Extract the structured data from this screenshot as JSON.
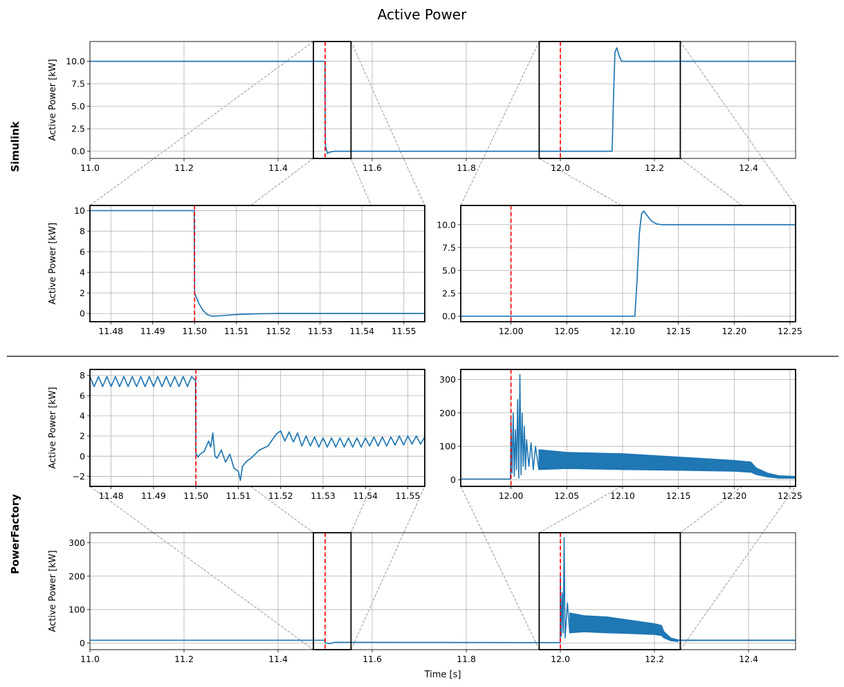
{
  "title": "Active Power",
  "row_labels": [
    "Simulink",
    "PowerFactory"
  ],
  "colors": {
    "series": "#1f77b4",
    "event_line": "#ff0000",
    "grid": "#b0b0b0",
    "zoom_box": "#000000",
    "connector": "#808080"
  },
  "chart_data": [
    {
      "id": "simulink-overview",
      "type": "line",
      "row": "Simulink",
      "title": "",
      "xlabel": "",
      "ylabel": "Active Power [kW]",
      "xlim": [
        11.0,
        12.5
      ],
      "ylim": [
        -0.8,
        12.2
      ],
      "xticks": [
        11.0,
        11.2,
        11.4,
        11.6,
        11.8,
        12.0,
        12.2,
        12.4
      ],
      "xtick_labels": [
        "11.0",
        "11.2",
        "11.4",
        "11.6",
        "11.8",
        "12.0",
        "12.2",
        "12.4"
      ],
      "yticks": [
        0,
        2.5,
        5,
        7.5,
        10
      ],
      "ytick_labels": [
        "0.0",
        "2.5",
        "5.0",
        "7.5",
        "10.0"
      ],
      "grid": true,
      "event_lines_x": [
        11.5,
        12.0
      ],
      "zoom_regions": [
        [
          11.475,
          11.555
        ],
        [
          11.955,
          12.255
        ]
      ],
      "series": [
        {
          "x": [
            11.0,
            11.4995,
            11.5,
            11.501,
            11.505,
            11.51,
            11.52,
            12.11,
            12.113,
            12.116,
            12.12,
            12.125,
            12.13,
            12.2,
            12.5
          ],
          "y": [
            10,
            10,
            1.5,
            0.5,
            -0.25,
            -0.1,
            0,
            0,
            6,
            11,
            11.5,
            10.6,
            10,
            10,
            10
          ]
        }
      ]
    },
    {
      "id": "simulink-zoom-fault",
      "type": "line",
      "row": "Simulink",
      "title": "",
      "xlabel": "",
      "ylabel": "Active Power [kW]",
      "xlim": [
        11.475,
        11.555
      ],
      "ylim": [
        -0.8,
        10.5
      ],
      "xticks": [
        11.48,
        11.49,
        11.5,
        11.51,
        11.52,
        11.53,
        11.54,
        11.55
      ],
      "xtick_labels": [
        "11.48",
        "11.49",
        "11.50",
        "11.51",
        "11.52",
        "11.53",
        "11.54",
        "11.55"
      ],
      "yticks": [
        0,
        2,
        4,
        6,
        8,
        10
      ],
      "ytick_labels": [
        "0",
        "2",
        "4",
        "6",
        "8",
        "10"
      ],
      "grid": true,
      "event_lines_x": [
        11.5
      ],
      "series": [
        {
          "x": [
            11.475,
            11.4999,
            11.5,
            11.501,
            11.502,
            11.503,
            11.504,
            11.505,
            11.507,
            11.51,
            11.515,
            11.52,
            11.555
          ],
          "y": [
            10,
            10,
            2.0,
            1.0,
            0.3,
            -0.1,
            -0.25,
            -0.25,
            -0.2,
            -0.1,
            -0.03,
            0,
            0
          ]
        }
      ]
    },
    {
      "id": "simulink-zoom-recovery",
      "type": "line",
      "row": "Simulink",
      "title": "",
      "xlabel": "",
      "ylabel": "",
      "xlim": [
        11.955,
        12.255
      ],
      "ylim": [
        -0.6,
        12.1
      ],
      "xticks": [
        12.0,
        12.05,
        12.1,
        12.15,
        12.2,
        12.25
      ],
      "xtick_labels": [
        "12.00",
        "12.05",
        "12.10",
        "12.15",
        "12.20",
        "12.25"
      ],
      "yticks": [
        0,
        2.5,
        5,
        7.5,
        10
      ],
      "ytick_labels": [
        "0.0",
        "2.5",
        "5.0",
        "7.5",
        "10.0"
      ],
      "grid": true,
      "event_lines_x": [
        12.0
      ],
      "series": [
        {
          "x": [
            11.955,
            12.111,
            12.113,
            12.115,
            12.117,
            12.119,
            12.122,
            12.126,
            12.13,
            12.135,
            12.255
          ],
          "y": [
            0,
            0,
            4,
            9,
            11.2,
            11.5,
            11.0,
            10.4,
            10.1,
            10,
            10
          ]
        }
      ]
    },
    {
      "id": "powerfactory-zoom-fault",
      "type": "line",
      "row": "PowerFactory",
      "title": "",
      "xlabel": "",
      "ylabel": "Active Power [kW]",
      "xlim": [
        11.475,
        11.554
      ],
      "ylim": [
        -3.0,
        8.6
      ],
      "xticks": [
        11.48,
        11.49,
        11.5,
        11.51,
        11.52,
        11.53,
        11.54,
        11.55
      ],
      "xtick_labels": [
        "11.48",
        "11.49",
        "11.50",
        "11.51",
        "11.52",
        "11.53",
        "11.54",
        "11.55"
      ],
      "yticks": [
        -2,
        0,
        2,
        4,
        6,
        8
      ],
      "ytick_labels": [
        "−2",
        "0",
        "2",
        "4",
        "6",
        "8"
      ],
      "grid": true,
      "event_lines_x": [
        11.5
      ],
      "series": [
        {
          "x": [
            11.475,
            11.476,
            11.477,
            11.478,
            11.479,
            11.48,
            11.481,
            11.482,
            11.483,
            11.484,
            11.485,
            11.486,
            11.487,
            11.488,
            11.489,
            11.49,
            11.491,
            11.492,
            11.493,
            11.494,
            11.495,
            11.496,
            11.497,
            11.498,
            11.499,
            11.4999,
            11.5,
            11.5005,
            11.501,
            11.502,
            11.503,
            11.5035,
            11.504,
            11.5045,
            11.505,
            11.506,
            11.507,
            11.508,
            11.509,
            11.51,
            11.5105,
            11.511,
            11.512,
            11.513,
            11.514,
            11.515,
            11.516,
            11.517,
            11.518,
            11.519,
            11.52,
            11.521,
            11.522,
            11.523,
            11.524,
            11.525,
            11.526,
            11.527,
            11.528,
            11.529,
            11.53,
            11.531,
            11.532,
            11.533,
            11.534,
            11.535,
            11.536,
            11.537,
            11.538,
            11.539,
            11.54,
            11.541,
            11.542,
            11.543,
            11.544,
            11.545,
            11.546,
            11.547,
            11.548,
            11.549,
            11.55,
            11.551,
            11.552,
            11.553,
            11.554
          ],
          "y": [
            7.9,
            6.9,
            7.9,
            6.9,
            7.9,
            6.9,
            7.9,
            6.9,
            7.9,
            6.9,
            7.9,
            6.9,
            7.9,
            6.9,
            7.9,
            6.9,
            7.9,
            6.9,
            7.9,
            6.9,
            7.9,
            6.9,
            7.9,
            6.9,
            7.9,
            7.5,
            0.3,
            -0.1,
            0.2,
            0.5,
            1.5,
            0.9,
            2.3,
            0.0,
            -0.2,
            0.6,
            -0.6,
            0.2,
            -1.2,
            -1.5,
            -2.4,
            -1.0,
            -0.5,
            -0.2,
            0.2,
            0.6,
            0.8,
            1.0,
            1.6,
            2.2,
            2.5,
            1.5,
            2.4,
            1.4,
            2.3,
            1.0,
            2.0,
            1.0,
            1.9,
            0.9,
            1.8,
            0.9,
            1.8,
            0.9,
            1.8,
            0.9,
            1.8,
            0.9,
            1.8,
            0.9,
            1.8,
            1.0,
            1.9,
            1.0,
            1.9,
            1.0,
            1.9,
            1.1,
            2.0,
            1.1,
            2.0,
            1.2,
            2.0,
            1.2,
            1.9
          ]
        }
      ]
    },
    {
      "id": "powerfactory-zoom-recovery",
      "type": "line",
      "row": "PowerFactory",
      "title": "",
      "xlabel": "",
      "ylabel": "",
      "xlim": [
        11.955,
        12.255
      ],
      "ylim": [
        -20,
        330
      ],
      "xticks": [
        12.0,
        12.05,
        12.1,
        12.15,
        12.2,
        12.25
      ],
      "xtick_labels": [
        "12.00",
        "12.05",
        "12.10",
        "12.15",
        "12.20",
        "12.25"
      ],
      "yticks": [
        0,
        100,
        200,
        300
      ],
      "ytick_labels": [
        "0",
        "100",
        "200",
        "300"
      ],
      "grid": true,
      "event_lines_x": [
        12.0
      ],
      "series": [
        {
          "x": [
            11.955,
            11.9995,
            12.0,
            12.001,
            12.002,
            12.003,
            12.004,
            12.005,
            12.006,
            12.007,
            12.008,
            12.009,
            12.01,
            12.011,
            12.012,
            12.013,
            12.014,
            12.016,
            12.018,
            12.02,
            12.022,
            12.025
          ],
          "y": [
            2,
            2,
            180,
            20,
            200,
            10,
            150,
            30,
            240,
            5,
            315,
            15,
            200,
            40,
            160,
            30,
            120,
            40,
            110,
            30,
            100,
            30
          ]
        }
      ],
      "envelope": {
        "x": [
          12.025,
          12.05,
          12.1,
          12.15,
          12.2,
          12.215,
          12.22,
          12.23,
          12.24,
          12.255
        ],
        "upper": [
          90,
          82,
          78,
          68,
          58,
          53,
          35,
          20,
          12,
          10
        ],
        "lower": [
          30,
          33,
          30,
          28,
          25,
          22,
          15,
          8,
          4,
          4
        ]
      },
      "tail_level": 8
    },
    {
      "id": "powerfactory-overview",
      "type": "line",
      "row": "PowerFactory",
      "title": "",
      "xlabel": "Time [s]",
      "ylabel": "Active Power [kW]",
      "xlim": [
        11.0,
        12.5
      ],
      "ylim": [
        -20,
        330
      ],
      "xticks": [
        11.0,
        11.2,
        11.4,
        11.6,
        11.8,
        12.0,
        12.2,
        12.4
      ],
      "xtick_labels": [
        "11.0",
        "11.2",
        "11.4",
        "11.6",
        "11.8",
        "12.0",
        "12.2",
        "12.4"
      ],
      "yticks": [
        0,
        100,
        200,
        300
      ],
      "ytick_labels": [
        "0",
        "100",
        "200",
        "300"
      ],
      "grid": true,
      "event_lines_x": [
        11.5,
        12.0
      ],
      "zoom_regions": [
        [
          11.475,
          11.555
        ],
        [
          11.955,
          12.255
        ]
      ],
      "series": [
        {
          "x": [
            11.0,
            11.4995,
            11.5,
            11.51,
            11.52,
            11.9995,
            12.0,
            12.002,
            12.004,
            12.006,
            12.008,
            12.01,
            12.015,
            12.02
          ],
          "y": [
            8,
            8,
            0,
            -2,
            2,
            1,
            200,
            20,
            150,
            30,
            315,
            15,
            120,
            30
          ]
        }
      ],
      "envelope": {
        "x": [
          12.02,
          12.05,
          12.1,
          12.15,
          12.2,
          12.215,
          12.22,
          12.235,
          12.25
        ],
        "upper": [
          90,
          82,
          78,
          68,
          58,
          53,
          35,
          15,
          10
        ],
        "lower": [
          30,
          33,
          30,
          28,
          25,
          22,
          15,
          6,
          4
        ]
      },
      "tail_level": 8
    }
  ]
}
